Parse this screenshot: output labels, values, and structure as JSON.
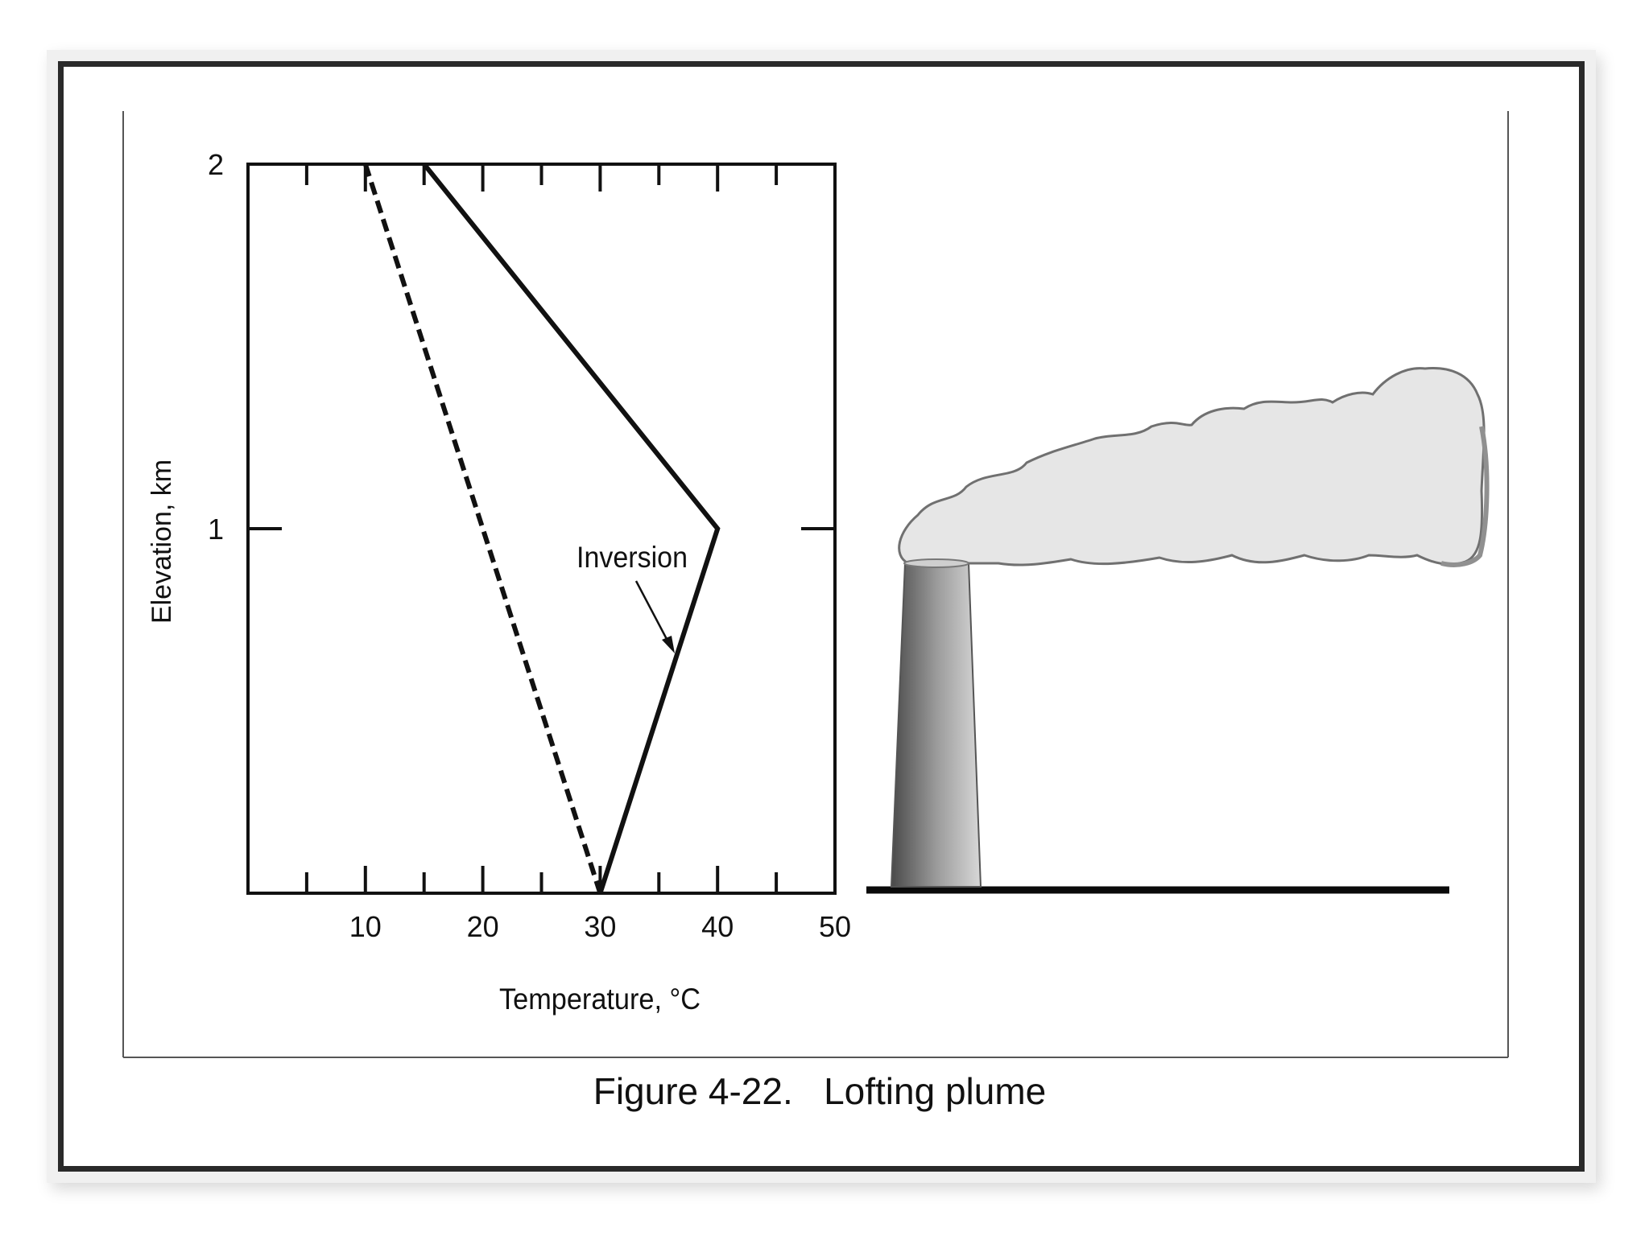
{
  "caption": "Figure 4-22.   Lofting plume",
  "chart_data": {
    "type": "line",
    "xlabel": "Temperature, °C",
    "ylabel": "Elevation, km",
    "xlim": [
      0,
      50
    ],
    "ylim": [
      0,
      2
    ],
    "x_tick_labels": [
      "10",
      "20",
      "30",
      "40",
      "50"
    ],
    "y_tick_labels": [
      "1",
      "2"
    ],
    "grid": false,
    "series": [
      {
        "style": "solid",
        "points": [
          [
            30,
            0
          ],
          [
            40,
            1
          ],
          [
            15,
            2
          ]
        ]
      },
      {
        "style": "dashed",
        "points": [
          [
            30,
            0
          ],
          [
            10,
            2
          ]
        ]
      }
    ],
    "annotations": [
      {
        "text": "Inversion",
        "target": [
          37.5,
          0.63
        ]
      }
    ]
  },
  "illustration": {
    "stack_color": "#8a8a8a",
    "plume_color": "#e6e6e6",
    "plume_edge": "#909090"
  }
}
